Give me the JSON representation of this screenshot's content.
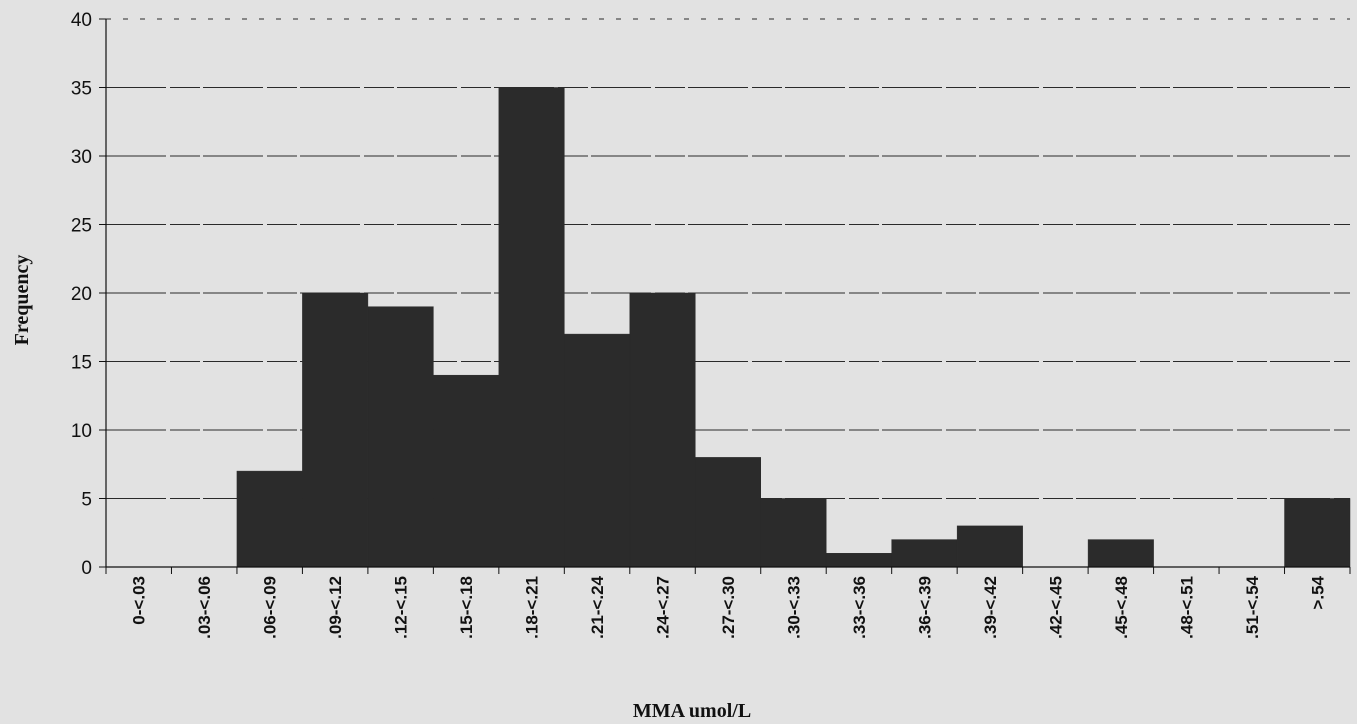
{
  "chart_data": {
    "type": "bar",
    "title": "",
    "xlabel": "MMA umol/L",
    "ylabel": "Frequency",
    "ylim": [
      0,
      40
    ],
    "yticks": [
      0,
      5,
      10,
      15,
      20,
      25,
      30,
      35,
      40
    ],
    "grid": true,
    "categories": [
      "0-<.03",
      ".03-<.06",
      ".06-<.09",
      ".09-<.12",
      ".12-<.15",
      ".15-<.18",
      ".18-<.21",
      ".21-<.24",
      ".24-<.27",
      ".27-<.30",
      ".30-<.33",
      ".33-<.36",
      ".36-<.39",
      ".39-<.42",
      ".42-<.45",
      ".45-<.48",
      ".48-<.51",
      ".51-<.54",
      ">.54"
    ],
    "values": [
      0,
      0,
      7,
      20,
      19,
      14,
      35,
      17,
      20,
      8,
      5,
      1,
      2,
      3,
      0,
      2,
      0,
      0,
      5
    ],
    "colors": {
      "bar": "#2b2b2b",
      "grid": "#2a2a2a",
      "axis": "#111111",
      "background": "#e2e2e2"
    }
  }
}
